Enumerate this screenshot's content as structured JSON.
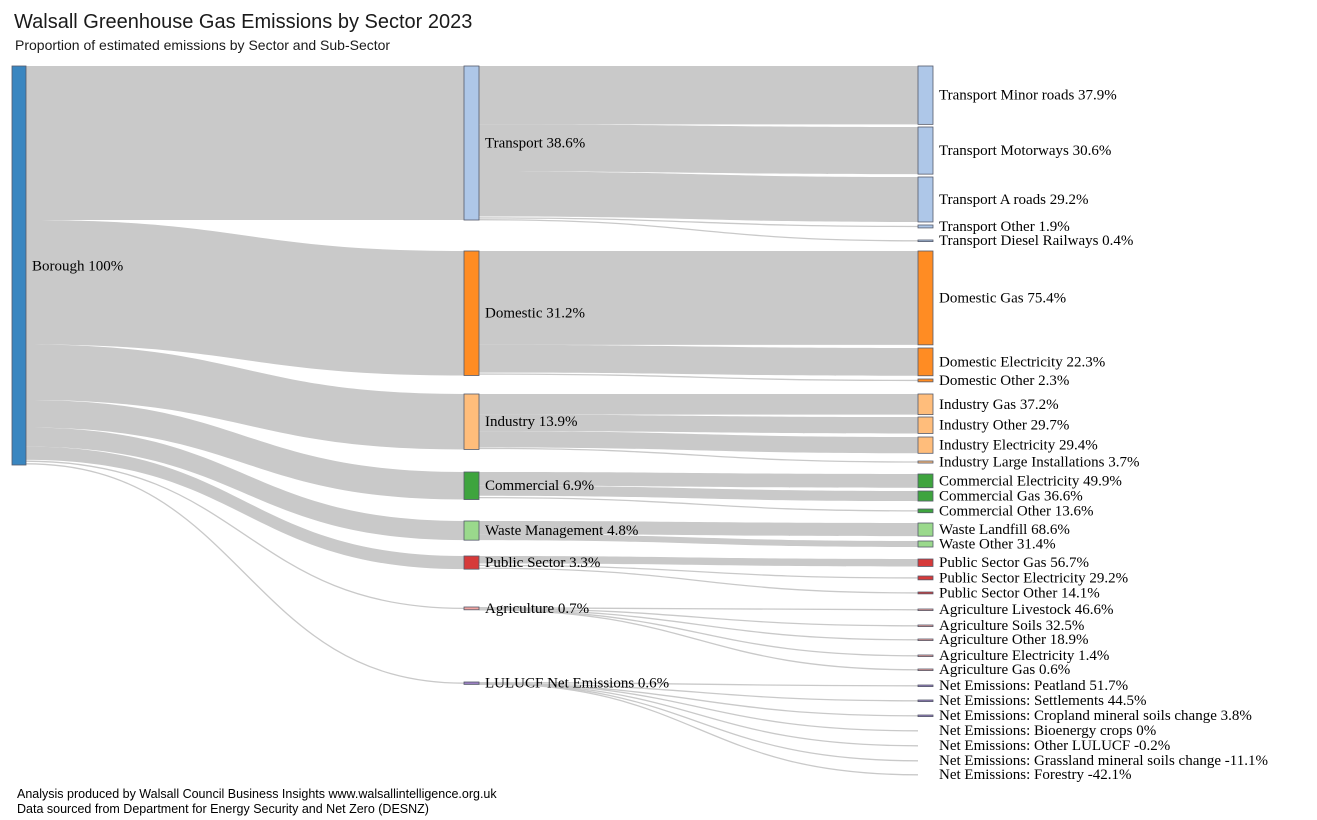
{
  "chart_data": {
    "type": "sankey",
    "title": "Walsall Greenhouse Gas Emissions by Sector 2023",
    "subtitle": "Proportion of estimated emissions by Sector and Sub-Sector",
    "footer": [
      "Analysis produced by Walsall Council Business Insights  www.walsallintelligence.org.uk",
      "Data sourced from Department for Energy Security and Net Zero (DESNZ)"
    ],
    "root": {
      "label": "Borough 100%",
      "value": 100,
      "color": "#3a86c0"
    },
    "sectors": [
      {
        "label": "Transport 38.6%",
        "value": 38.6,
        "color": "#aec7e8",
        "children": [
          {
            "label": "Transport Minor roads 37.9%",
            "value": 37.9
          },
          {
            "label": "Transport Motorways 30.6%",
            "value": 30.6
          },
          {
            "label": "Transport A roads 29.2%",
            "value": 29.2
          },
          {
            "label": "Transport Other 1.9%",
            "value": 1.9
          },
          {
            "label": "Transport Diesel Railways 0.4%",
            "value": 0.4
          }
        ]
      },
      {
        "label": "Domestic 31.2%",
        "value": 31.2,
        "color": "#ff8c23",
        "children": [
          {
            "label": "Domestic Gas 75.4%",
            "value": 75.4
          },
          {
            "label": "Domestic Electricity 22.3%",
            "value": 22.3
          },
          {
            "label": "Domestic Other 2.3%",
            "value": 2.3
          }
        ]
      },
      {
        "label": "Industry 13.9%",
        "value": 13.9,
        "color": "#ffbd7b",
        "children": [
          {
            "label": "Industry Gas 37.2%",
            "value": 37.2
          },
          {
            "label": "Industry Other 29.7%",
            "value": 29.7
          },
          {
            "label": "Industry Electricity 29.4%",
            "value": 29.4
          },
          {
            "label": "Industry Large Installations 3.7%",
            "value": 3.7
          }
        ]
      },
      {
        "label": "Commercial 6.9%",
        "value": 6.9,
        "color": "#3ea43e",
        "children": [
          {
            "label": "Commercial Electricity 49.9%",
            "value": 49.9
          },
          {
            "label": "Commercial Gas 36.6%",
            "value": 36.6
          },
          {
            "label": "Commercial Other 13.6%",
            "value": 13.6
          }
        ]
      },
      {
        "label": "Waste Management 4.8%",
        "value": 4.8,
        "color": "#9ad98c",
        "children": [
          {
            "label": "Waste Landfill 68.6%",
            "value": 68.6
          },
          {
            "label": "Waste Other 31.4%",
            "value": 31.4
          }
        ]
      },
      {
        "label": "Public Sector 3.3%",
        "value": 3.3,
        "color": "#d63a3a",
        "children": [
          {
            "label": "Public Sector Gas 56.7%",
            "value": 56.7
          },
          {
            "label": "Public Sector Electricity 29.2%",
            "value": 29.2
          },
          {
            "label": "Public Sector Other 14.1%",
            "value": 14.1
          }
        ]
      },
      {
        "label": "Agriculture 0.7%",
        "value": 0.7,
        "color": "#f2a5a1",
        "children": [
          {
            "label": "Agriculture Livestock 46.6%",
            "value": 46.6
          },
          {
            "label": "Agriculture Soils 32.5%",
            "value": 32.5
          },
          {
            "label": "Agriculture Other 18.9%",
            "value": 18.9
          },
          {
            "label": "Agriculture Electricity 1.4%",
            "value": 1.4
          },
          {
            "label": "Agriculture Gas 0.6%",
            "value": 0.6
          }
        ]
      },
      {
        "label": "LULUCF Net Emissions 0.6%",
        "value": 0.6,
        "color": "#9a7fc1",
        "children": [
          {
            "label": "Net Emissions: Peatland 51.7%",
            "value": 51.7
          },
          {
            "label": "Net Emissions: Settlements 44.5%",
            "value": 44.5
          },
          {
            "label": "Net Emissions: Cropland mineral soils change 3.8%",
            "value": 3.8
          },
          {
            "label": "Net Emissions: Bioenergy crops 0%",
            "value": 0
          },
          {
            "label": "Net Emissions: Other LULUCF -0.2%",
            "value": -0.2
          },
          {
            "label": "Net Emissions: Grassland mineral soils change -11.1%",
            "value": -11.1
          },
          {
            "label": "Net Emissions: Forestry -42.1%",
            "value": -42.1
          }
        ]
      }
    ]
  }
}
